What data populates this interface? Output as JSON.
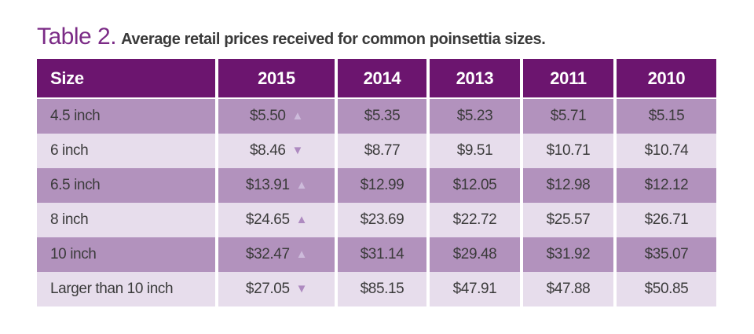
{
  "header": {
    "title_prefix": "Table 2.",
    "title_rest": "Average retail prices received for common poinsettia sizes."
  },
  "colors": {
    "header_purple": "#6c156f",
    "dark_row": "#b292bd",
    "light_row": "#e7ddec",
    "title_purple": "#7b2b86",
    "arrow_on_dark": "#cdbbdb",
    "arrow_on_light": "#ae8ac0"
  },
  "chart_data": {
    "type": "table",
    "title": "Table 2. Average retail prices received for common poinsettia sizes.",
    "columns": [
      "Size",
      "2015",
      "2014",
      "2013",
      "2011",
      "2010"
    ],
    "rows": [
      {
        "size": "4.5 inch",
        "prices": [
          "$5.50",
          "$5.35",
          "$5.23",
          "$5.71",
          "$5.15"
        ],
        "trend_2015": "up",
        "arrow": "▲"
      },
      {
        "size": "6 inch",
        "prices": [
          "$8.46",
          "$8.77",
          "$9.51",
          "$10.71",
          "$10.74"
        ],
        "trend_2015": "down",
        "arrow": "▼"
      },
      {
        "size": "6.5 inch",
        "prices": [
          "$13.91",
          "$12.99",
          "$12.05",
          "$12.98",
          "$12.12"
        ],
        "trend_2015": "up",
        "arrow": "▲"
      },
      {
        "size": "8 inch",
        "prices": [
          "$24.65",
          "$23.69",
          "$22.72",
          "$25.57",
          "$26.71"
        ],
        "trend_2015": "up",
        "arrow": "▲"
      },
      {
        "size": "10 inch",
        "prices": [
          "$32.47",
          "$31.14",
          "$29.48",
          "$31.92",
          "$35.07"
        ],
        "trend_2015": "up",
        "arrow": "▲"
      },
      {
        "size": "Larger than 10 inch",
        "prices": [
          "$27.05",
          "$85.15",
          "$47.91",
          "$47.88",
          "$50.85"
        ],
        "trend_2015": "down",
        "arrow": "▼"
      }
    ]
  }
}
